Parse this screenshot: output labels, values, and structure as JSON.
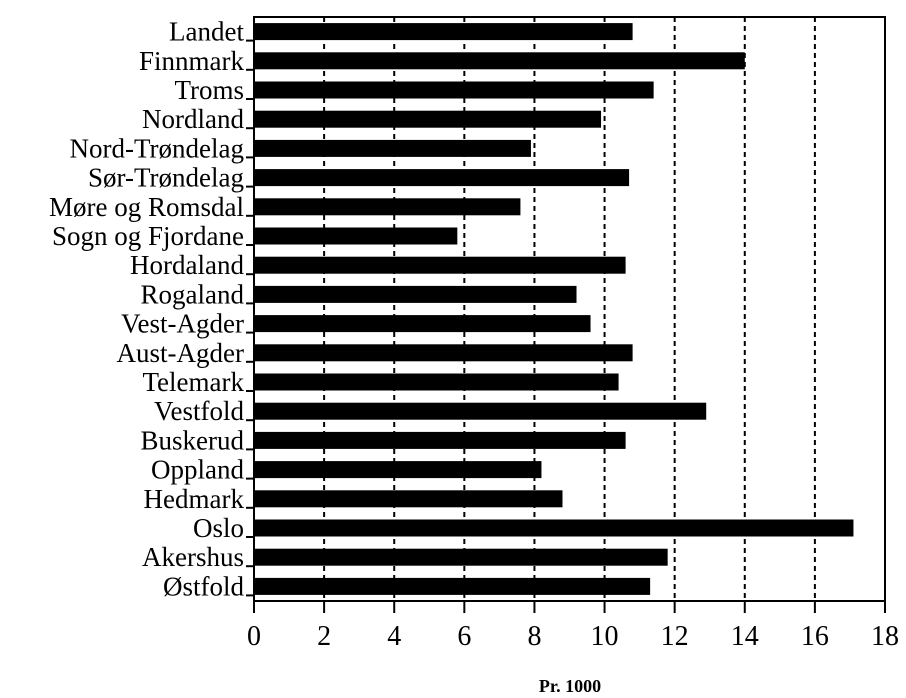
{
  "chart_data": {
    "type": "bar",
    "orientation": "horizontal",
    "categories": [
      "Landet",
      "Finnmark",
      "Troms",
      "Nordland",
      "Nord-Trøndelag",
      "Sør-Trøndelag",
      "Møre og Romsdal",
      "Sogn og Fjordane",
      "Hordaland",
      "Rogaland",
      "Vest-Agder",
      "Aust-Agder",
      "Telemark",
      "Vestfold",
      "Buskerud",
      "Oppland",
      "Hedmark",
      "Oslo",
      "Akershus",
      "Østfold"
    ],
    "values": [
      10.8,
      14.0,
      11.4,
      9.9,
      7.9,
      10.7,
      7.6,
      5.8,
      10.6,
      9.2,
      9.6,
      10.8,
      10.4,
      12.9,
      10.6,
      8.2,
      8.8,
      17.1,
      11.8,
      11.3
    ],
    "xlim": [
      0,
      18
    ],
    "xticks": [
      0,
      2,
      4,
      6,
      8,
      10,
      12,
      14,
      16,
      18
    ],
    "gridlines": "vertical dashed",
    "title": "",
    "xlabel": "Pr. 1000",
    "ylabel": "",
    "bar_color": "#000000"
  }
}
